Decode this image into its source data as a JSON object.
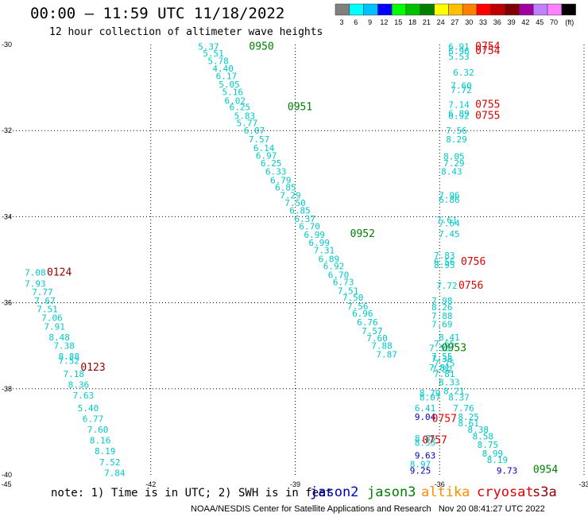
{
  "header": {
    "title": "00:00 – 11:59 UTC 11/18/2022",
    "subtitle": "12 hour collection of altimeter wave heights"
  },
  "scale": {
    "colors": [
      "#808080",
      "#00ffff",
      "#00c0ff",
      "#0000ff",
      "#00ff00",
      "#00c000",
      "#008000",
      "#ffff00",
      "#ffc000",
      "#ff8000",
      "#ff0000",
      "#c00000",
      "#800000",
      "#a000a0",
      "#c080ff",
      "#ff80ff",
      "#000000"
    ],
    "labels": [
      "3",
      "6",
      "9",
      "12",
      "15",
      "18",
      "21",
      "24",
      "27",
      "30",
      "33",
      "36",
      "39",
      "42",
      "45",
      "70",
      "(ft)"
    ]
  },
  "footer": {
    "note": "note: 1) Time is in UTC; 2) SWH is in feet",
    "credit": "NOAA/NESDIS Center for Satellite Applications and Research   Nov 20 08:41:27 UTC 2022"
  },
  "legend": [
    {
      "name": "jason2",
      "color": "#0000c0"
    },
    {
      "name": "jason3",
      "color": "#008000"
    },
    {
      "name": "altika",
      "color": "#ff8c00"
    },
    {
      "name": "cryosat",
      "color": "#e00000"
    },
    {
      "name": "s3a",
      "color": "#900000"
    }
  ],
  "chart_data": {
    "type": "scatter",
    "title": "00:00 – 11:59 UTC 11/18/2022",
    "subtitle": "12 hour collection of altimeter wave heights",
    "xlim": [
      -45,
      -33
    ],
    "ylim": [
      -40,
      -30
    ],
    "x_ticks": [
      "-45",
      "-42",
      "-39",
      "-36",
      "-33",
      "-30"
    ],
    "y_ticks": [
      "-30",
      "-32",
      "-34",
      "-36",
      "-38",
      "-40"
    ],
    "grid": true,
    "series": [
      {
        "name": "jason3",
        "color": "#00c8c8",
        "points": [
          [
            -40.8,
            -30.05,
            "5.37"
          ],
          [
            -40.7,
            -30.2,
            "5.51"
          ],
          [
            -40.6,
            -30.38,
            "5.78"
          ],
          [
            -40.5,
            -30.55,
            "4.40"
          ],
          [
            -40.43,
            -30.73,
            "6.17"
          ],
          [
            -40.37,
            -30.92,
            "5.05"
          ],
          [
            -40.3,
            -31.1,
            "5.16"
          ],
          [
            -40.25,
            -31.3,
            "6.02"
          ],
          [
            -40.15,
            -31.45,
            "6.25"
          ],
          [
            -40.05,
            -31.65,
            "5.83"
          ],
          [
            -40,
            -31.82,
            "5.77"
          ],
          [
            -39.85,
            -32.0,
            "6.07"
          ],
          [
            -39.75,
            -32.2,
            "7.57"
          ],
          [
            -39.65,
            -32.4,
            "6.14"
          ],
          [
            -39.6,
            -32.58,
            "6.97"
          ],
          [
            -39.5,
            -32.75,
            "6.25"
          ],
          [
            -39.4,
            -32.95,
            "6.33"
          ],
          [
            -39.3,
            -33.15,
            "6.79"
          ],
          [
            -39.2,
            -33.32,
            "6.85"
          ],
          [
            -39.1,
            -33.5,
            "7.29"
          ],
          [
            -39,
            -33.68,
            "7.50"
          ],
          [
            -38.9,
            -33.85,
            "6.85"
          ],
          [
            -38.8,
            -34.05,
            "6.37"
          ],
          [
            -38.7,
            -34.22,
            "6.70"
          ],
          [
            -38.6,
            -34.42,
            "6.99"
          ],
          [
            -38.5,
            -34.6,
            "6.99"
          ],
          [
            -38.4,
            -34.78,
            "7.31"
          ],
          [
            -38.3,
            -34.98,
            "6.89"
          ],
          [
            -38.2,
            -35.15,
            "6.92"
          ],
          [
            -38.1,
            -35.35,
            "6.70"
          ],
          [
            -38,
            -35.52,
            "6.73"
          ],
          [
            -37.9,
            -35.72,
            "7.51"
          ],
          [
            -37.8,
            -35.88,
            "7.50"
          ],
          [
            -37.7,
            -36.08,
            "7.56"
          ],
          [
            -37.6,
            -36.25,
            "6.96"
          ],
          [
            -37.5,
            -36.45,
            "6.76"
          ],
          [
            -37.4,
            -36.65,
            "7.57"
          ],
          [
            -37.3,
            -36.82,
            "7.60"
          ],
          [
            -37.2,
            -37.0,
            "7.88"
          ],
          [
            -37.1,
            -37.2,
            "7.87"
          ],
          [
            -35.6,
            -30.05,
            "6.91"
          ],
          [
            -35.6,
            -30.15,
            "6.96"
          ],
          [
            -35.6,
            -30.28,
            "5.53"
          ],
          [
            -35.5,
            -30.65,
            "6.32"
          ],
          [
            -35.55,
            -30.95,
            "7.60"
          ],
          [
            -35.55,
            -31.05,
            "7.72"
          ],
          [
            -35.6,
            -31.4,
            "7.14"
          ],
          [
            -35.6,
            -31.6,
            "6.89"
          ],
          [
            -35.6,
            -31.65,
            "6.92"
          ],
          [
            -35.65,
            -32.0,
            "7.56"
          ],
          [
            -35.65,
            -32.2,
            "8.29"
          ],
          [
            -35.7,
            -32.6,
            "8.05"
          ],
          [
            -35.7,
            -32.75,
            "7.29"
          ],
          [
            -35.75,
            -32.95,
            "8.43"
          ],
          [
            -35.8,
            -33.5,
            "7.96"
          ],
          [
            -35.8,
            -33.6,
            "6.86"
          ],
          [
            -35.85,
            -34.08,
            "7.61"
          ],
          [
            -35.8,
            -34.15,
            "7.64"
          ],
          [
            -35.8,
            -34.4,
            "7.45"
          ],
          [
            -35.9,
            -34.9,
            "7.83"
          ],
          [
            -35.9,
            -35.05,
            "6.56"
          ],
          [
            -35.9,
            -35.12,
            "8.95"
          ],
          [
            -35.85,
            -35.6,
            "7.72"
          ],
          [
            -35.95,
            -35.95,
            "7.98"
          ],
          [
            -35.95,
            -36.1,
            "8.26"
          ],
          [
            -35.95,
            -36.3,
            "7.88"
          ],
          [
            -35.95,
            -36.5,
            "7.69"
          ],
          [
            -35.8,
            -36.8,
            "8.41"
          ],
          [
            -35.9,
            -36.95,
            "7.65"
          ],
          [
            -36,
            -37.05,
            "7.58"
          ],
          [
            -35.95,
            -37.25,
            "7.55"
          ],
          [
            -35.95,
            -37.3,
            "7.38"
          ],
          [
            -35.9,
            -37.4,
            "7.75"
          ],
          [
            -36.0,
            -37.5,
            "7.81"
          ],
          [
            -35.95,
            -37.55,
            "7.82"
          ],
          [
            -35.9,
            -37.65,
            "7.81"
          ],
          [
            -35.8,
            -37.85,
            "8.33"
          ],
          [
            -35.7,
            -38.05,
            "8.21"
          ],
          [
            -35.6,
            -38.2,
            "8.37"
          ],
          [
            -36.2,
            -38.1,
            "8.79"
          ],
          [
            -36.2,
            -38.2,
            "8.07"
          ],
          [
            -36.3,
            -38.45,
            "6.41"
          ],
          [
            -35.5,
            -38.45,
            "7.76"
          ],
          [
            -35.4,
            -38.65,
            "8.25"
          ],
          [
            -35.4,
            -38.8,
            "8.61"
          ],
          [
            -35.2,
            -38.95,
            "8.38"
          ],
          [
            -35.1,
            -39.1,
            "8.58"
          ],
          [
            -35.0,
            -39.3,
            "8.75"
          ],
          [
            -34.9,
            -39.5,
            "8.99"
          ],
          [
            -34.8,
            -39.65,
            "8.19"
          ],
          [
            -36.3,
            -39.15,
            "8.85"
          ],
          [
            -36.3,
            -39.25,
            "8.55"
          ],
          [
            -36.4,
            -39.75,
            "8.97"
          ],
          [
            -44.4,
            -35.3,
            "7.08"
          ],
          [
            -44.4,
            -35.55,
            "7.93"
          ],
          [
            -44.25,
            -35.75,
            "7.77"
          ],
          [
            -44.2,
            -35.95,
            "7.67"
          ],
          [
            -44.15,
            -36.15,
            "7.51"
          ],
          [
            -44.05,
            -36.35,
            "7.06"
          ],
          [
            -44.0,
            -36.55,
            "7.91"
          ],
          [
            -43.9,
            -36.8,
            "8.48"
          ],
          [
            -43.8,
            -37.0,
            "7.38"
          ],
          [
            -43.7,
            -37.25,
            "8.88"
          ],
          [
            -43.7,
            -37.35,
            "7.52"
          ],
          [
            -43.6,
            -37.65,
            "7.18"
          ],
          [
            -43.5,
            -37.9,
            "8.36"
          ],
          [
            -43.4,
            -38.15,
            "7.63"
          ],
          [
            -43.3,
            -38.45,
            "5.40"
          ],
          [
            -43.2,
            -38.7,
            "6.77"
          ],
          [
            -43.1,
            -38.95,
            "7.60"
          ],
          [
            -43.05,
            -39.2,
            "8.16"
          ],
          [
            -42.95,
            -39.45,
            "8.19"
          ],
          [
            -42.85,
            -39.7,
            "7.52"
          ],
          [
            -42.75,
            -39.95,
            "7.84"
          ]
        ]
      },
      {
        "name": "jason2",
        "color": "#0000c0",
        "points": [
          [
            -36.3,
            -38.65,
            "9.04"
          ],
          [
            -36.3,
            -39.55,
            "9.63"
          ],
          [
            -36.4,
            -39.9,
            "9.25"
          ],
          [
            -34.6,
            -39.9,
            "9.73"
          ]
        ]
      },
      {
        "name": "time_green",
        "color": "#008000",
        "points": [
          [
            -39.7,
            -30.05,
            "0950"
          ],
          [
            -38.9,
            -31.45,
            "0951"
          ],
          [
            -37.6,
            -34.4,
            "0952"
          ],
          [
            -35.7,
            -37.05,
            "0953"
          ],
          [
            -33.8,
            -39.88,
            "0954"
          ]
        ]
      },
      {
        "name": "time_red",
        "color": "#e00000",
        "points": [
          [
            -35.0,
            -30.05,
            "0754"
          ],
          [
            -35.0,
            -30.15,
            "0754"
          ],
          [
            -35.0,
            -31.4,
            "0755"
          ],
          [
            -35.0,
            -31.65,
            "0755"
          ],
          [
            -35.3,
            -35.05,
            "0756"
          ],
          [
            -35.35,
            -35.6,
            "0756"
          ],
          [
            -35.9,
            -38.7,
            "0757"
          ],
          [
            -36.1,
            -39.2,
            "0757"
          ]
        ]
      },
      {
        "name": "time_dark",
        "color": "#900000",
        "points": [
          [
            -43.9,
            -35.3,
            "0124"
          ],
          [
            -43.2,
            -37.5,
            "0123"
          ]
        ]
      }
    ]
  }
}
